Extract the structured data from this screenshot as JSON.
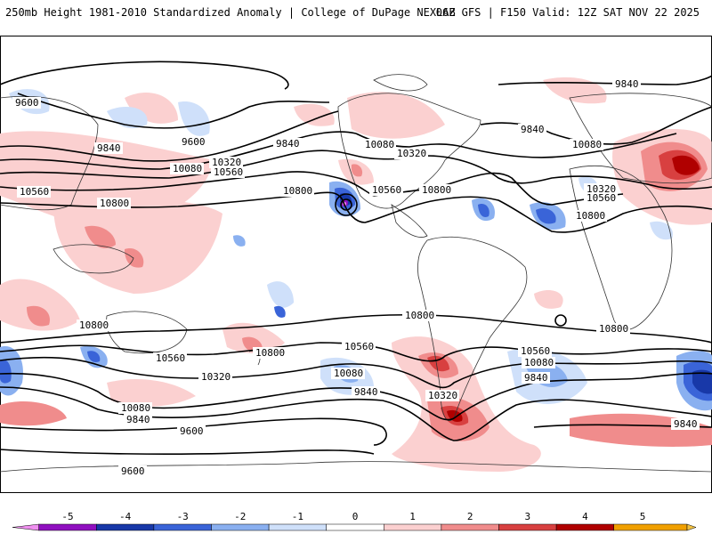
{
  "header": {
    "title_left": "250mb Height 1981-2010 Standardized Anomaly | College of DuPage NEXLAB",
    "title_right": "06Z GFS | F150 Valid: 12Z SAT NOV 22 2025"
  },
  "contour_labels": {
    "nh_9600_a": "9600",
    "nh_9600_b": "9600",
    "nh_9840_a": "9840",
    "nh_9840_b": "9840",
    "nh_9840_c": "9840",
    "nh_9840_d": "9840",
    "nh_10080_a": "10080",
    "nh_10080_b": "10080",
    "nh_10080_c": "10080",
    "nh_10320_a": "10320",
    "nh_10320_b": "10320",
    "nh_10320_c": "10320",
    "nh_10560_a": "10560",
    "nh_10560_b": "10560",
    "nh_10560_c": "10560",
    "nh_10560_d": "10560",
    "nh_10800_a": "10800",
    "nh_10800_b": "10800",
    "nh_10800_c": "10800",
    "nh_10800_d": "10800",
    "sh_10800_a": "10800",
    "sh_10800_b": "10800",
    "sh_10800_c": "10800",
    "sh_10800_d": "10800",
    "sh_10560_a": "10560",
    "sh_10560_b": "10560",
    "sh_10560_c": "10560",
    "sh_10320_a": "10320",
    "sh_10320_b": "10320",
    "sh_10080_a": "10080",
    "sh_10080_b": "10080",
    "sh_10080_c": "10080",
    "sh_9840_a": "9840",
    "sh_9840_b": "9840",
    "sh_9840_c": "9840",
    "sh_9840_d": "9840",
    "sh_9600_a": "9600",
    "sh_9600_b": "9600"
  },
  "colorbar": {
    "ticks": [
      "-5",
      "-4",
      "-3",
      "-2",
      "-1",
      "0",
      "1",
      "2",
      "3",
      "4",
      "5"
    ],
    "colors": [
      "#f090f0",
      "#9010c0",
      "#1838a8",
      "#3a64d8",
      "#8ab0f0",
      "#cfe0fa",
      "#ffffff",
      "#fbd0d0",
      "#f08c8c",
      "#d84040",
      "#b00000",
      "#f0a000",
      "#f0c040"
    ]
  }
}
